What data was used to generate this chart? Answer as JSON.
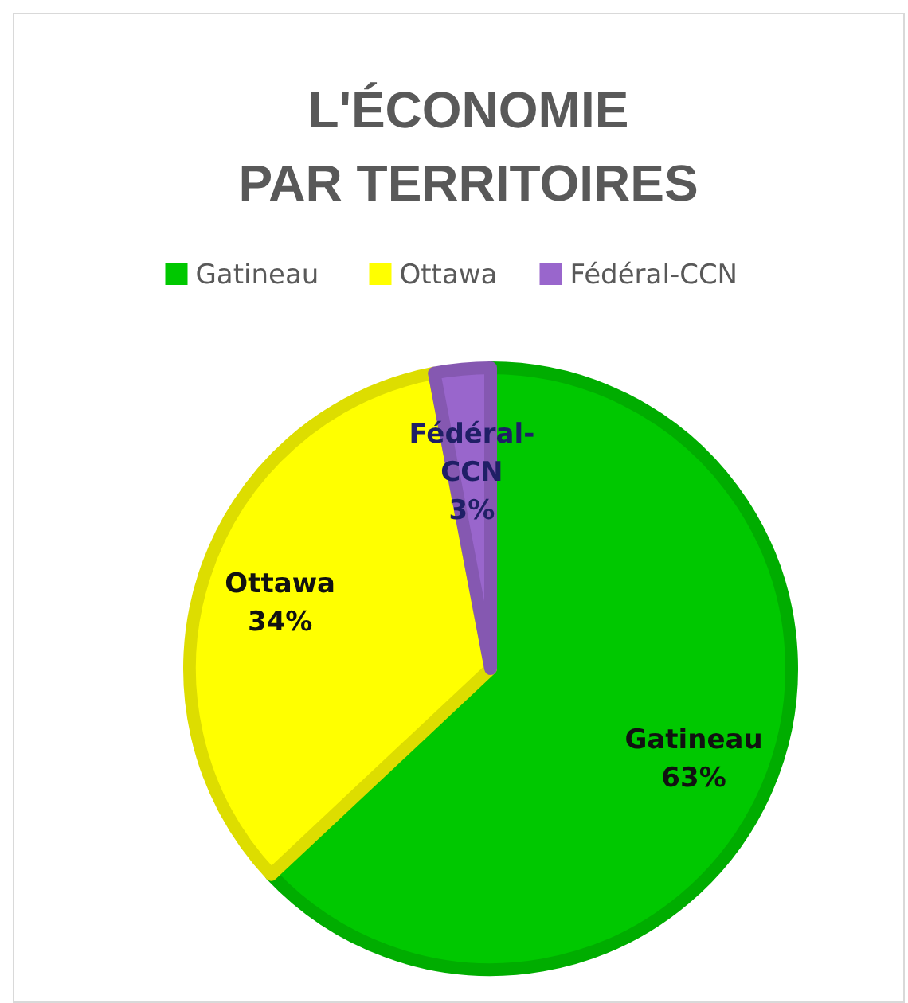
{
  "chart_data": {
    "type": "pie",
    "title": "L'ÉCONOMIE\nPAR TERRITOIRES",
    "categories": [
      "Gatineau",
      "Ottawa",
      "Fédéral-CCN"
    ],
    "values": [
      63,
      34,
      3
    ],
    "colors": [
      "#00c800",
      "#ffff00",
      "#9966cc"
    ],
    "value_labels": [
      "63%",
      "34%",
      "3%"
    ],
    "legend": "top"
  }
}
